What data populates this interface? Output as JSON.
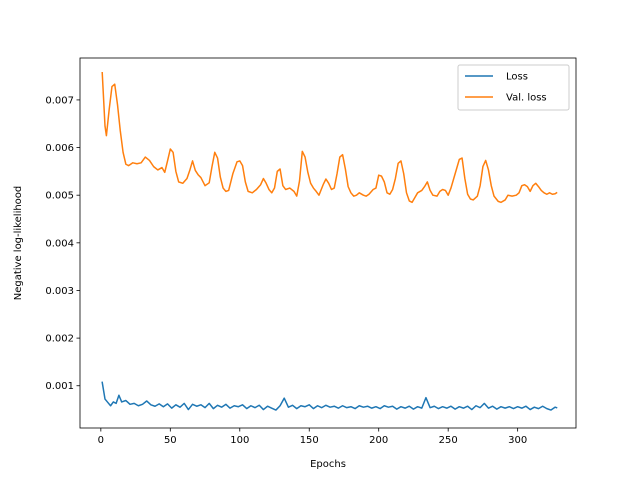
{
  "chart_data": {
    "type": "line",
    "xlabel": "Epochs",
    "ylabel": "Negative log-likelihood",
    "xlim": [
      -15,
      342
    ],
    "ylim": [
      0.000113,
      0.00788
    ],
    "x_ticks": [
      0,
      50,
      100,
      150,
      200,
      250,
      300
    ],
    "y_ticks": [
      0.001,
      0.002,
      0.003,
      0.004,
      0.005,
      0.006,
      0.007
    ],
    "y_tick_labels": [
      "0.001",
      "0.002",
      "0.003",
      "0.004",
      "0.005",
      "0.006",
      "0.007"
    ],
    "grid": false,
    "legend_position": "top-right",
    "series": [
      {
        "name": "Loss",
        "color": "#1f77b4",
        "points": [
          [
            1,
            0.00107
          ],
          [
            3,
            0.00072
          ],
          [
            5,
            0.00065
          ],
          [
            7,
            0.00058
          ],
          [
            9,
            0.00066
          ],
          [
            11,
            0.00063
          ],
          [
            13,
            0.0008
          ],
          [
            15,
            0.00066
          ],
          [
            18,
            0.00069
          ],
          [
            21,
            0.00061
          ],
          [
            24,
            0.00063
          ],
          [
            27,
            0.00058
          ],
          [
            30,
            0.00061
          ],
          [
            33,
            0.00068
          ],
          [
            36,
            0.0006
          ],
          [
            39,
            0.00057
          ],
          [
            42,
            0.00062
          ],
          [
            45,
            0.00056
          ],
          [
            48,
            0.00062
          ],
          [
            51,
            0.00053
          ],
          [
            54,
            0.0006
          ],
          [
            57,
            0.00055
          ],
          [
            60,
            0.00063
          ],
          [
            63,
            0.0005
          ],
          [
            66,
            0.00061
          ],
          [
            69,
            0.00057
          ],
          [
            72,
            0.0006
          ],
          [
            75,
            0.00054
          ],
          [
            78,
            0.00063
          ],
          [
            81,
            0.00052
          ],
          [
            84,
            0.00059
          ],
          [
            87,
            0.00055
          ],
          [
            90,
            0.00061
          ],
          [
            93,
            0.00053
          ],
          [
            96,
            0.00058
          ],
          [
            99,
            0.00056
          ],
          [
            102,
            0.0006
          ],
          [
            105,
            0.00052
          ],
          [
            108,
            0.00058
          ],
          [
            111,
            0.00054
          ],
          [
            114,
            0.00059
          ],
          [
            117,
            0.0005
          ],
          [
            120,
            0.00057
          ],
          [
            123,
            0.00053
          ],
          [
            126,
            0.00049
          ],
          [
            129,
            0.00058
          ],
          [
            132,
            0.00074
          ],
          [
            135,
            0.00055
          ],
          [
            138,
            0.00059
          ],
          [
            141,
            0.00052
          ],
          [
            144,
            0.00058
          ],
          [
            147,
            0.00056
          ],
          [
            150,
            0.0006
          ],
          [
            153,
            0.00052
          ],
          [
            156,
            0.00058
          ],
          [
            159,
            0.00054
          ],
          [
            162,
            0.00059
          ],
          [
            165,
            0.00055
          ],
          [
            168,
            0.00057
          ],
          [
            171,
            0.00053
          ],
          [
            174,
            0.00058
          ],
          [
            177,
            0.00054
          ],
          [
            180,
            0.00056
          ],
          [
            183,
            0.00052
          ],
          [
            186,
            0.00058
          ],
          [
            189,
            0.00055
          ],
          [
            192,
            0.00057
          ],
          [
            195,
            0.00053
          ],
          [
            198,
            0.00056
          ],
          [
            201,
            0.00052
          ],
          [
            204,
            0.00058
          ],
          [
            207,
            0.00055
          ],
          [
            210,
            0.00057
          ],
          [
            213,
            0.00051
          ],
          [
            216,
            0.00056
          ],
          [
            219,
            0.00053
          ],
          [
            222,
            0.00057
          ],
          [
            225,
            0.00051
          ],
          [
            228,
            0.00056
          ],
          [
            231,
            0.00053
          ],
          [
            234,
            0.00075
          ],
          [
            237,
            0.00054
          ],
          [
            240,
            0.00057
          ],
          [
            243,
            0.00052
          ],
          [
            246,
            0.00056
          ],
          [
            249,
            0.00053
          ],
          [
            252,
            0.00057
          ],
          [
            255,
            0.00051
          ],
          [
            258,
            0.00056
          ],
          [
            261,
            0.00053
          ],
          [
            264,
            0.00057
          ],
          [
            267,
            0.0005
          ],
          [
            270,
            0.00058
          ],
          [
            273,
            0.00054
          ],
          [
            276,
            0.00063
          ],
          [
            279,
            0.00053
          ],
          [
            282,
            0.00057
          ],
          [
            285,
            0.00051
          ],
          [
            288,
            0.00056
          ],
          [
            291,
            0.00053
          ],
          [
            294,
            0.00056
          ],
          [
            297,
            0.00052
          ],
          [
            300,
            0.00056
          ],
          [
            303,
            0.00053
          ],
          [
            306,
            0.00057
          ],
          [
            309,
            0.0005
          ],
          [
            312,
            0.00055
          ],
          [
            315,
            0.00052
          ],
          [
            318,
            0.00057
          ],
          [
            321,
            0.00052
          ],
          [
            324,
            0.00049
          ],
          [
            327,
            0.00055
          ],
          [
            328,
            0.00054
          ]
        ]
      },
      {
        "name": "Val. loss",
        "color": "#ff7f0e",
        "points": [
          [
            1,
            0.00757
          ],
          [
            3,
            0.00645
          ],
          [
            4,
            0.00625
          ],
          [
            6,
            0.0068
          ],
          [
            8,
            0.00728
          ],
          [
            10,
            0.00733
          ],
          [
            12,
            0.0069
          ],
          [
            14,
            0.00635
          ],
          [
            16,
            0.0059
          ],
          [
            18,
            0.00565
          ],
          [
            20,
            0.00562
          ],
          [
            23,
            0.00568
          ],
          [
            26,
            0.00566
          ],
          [
            29,
            0.00568
          ],
          [
            32,
            0.0058
          ],
          [
            35,
            0.00573
          ],
          [
            38,
            0.0056
          ],
          [
            41,
            0.00553
          ],
          [
            44,
            0.00558
          ],
          [
            46,
            0.00548
          ],
          [
            48,
            0.00572
          ],
          [
            50,
            0.00597
          ],
          [
            52,
            0.0059
          ],
          [
            54,
            0.0055
          ],
          [
            56,
            0.00528
          ],
          [
            59,
            0.00525
          ],
          [
            62,
            0.00535
          ],
          [
            64,
            0.00552
          ],
          [
            66,
            0.00572
          ],
          [
            68,
            0.00552
          ],
          [
            70,
            0.00543
          ],
          [
            72,
            0.00537
          ],
          [
            75,
            0.0052
          ],
          [
            78,
            0.00526
          ],
          [
            80,
            0.0056
          ],
          [
            82,
            0.0059
          ],
          [
            84,
            0.00578
          ],
          [
            86,
            0.00538
          ],
          [
            88,
            0.00515
          ],
          [
            90,
            0.00508
          ],
          [
            92,
            0.0051
          ],
          [
            95,
            0.00545
          ],
          [
            98,
            0.0057
          ],
          [
            100,
            0.00572
          ],
          [
            102,
            0.00562
          ],
          [
            104,
            0.00528
          ],
          [
            106,
            0.00508
          ],
          [
            109,
            0.00505
          ],
          [
            112,
            0.00512
          ],
          [
            115,
            0.00522
          ],
          [
            117,
            0.00535
          ],
          [
            119,
            0.00525
          ],
          [
            121,
            0.00512
          ],
          [
            123,
            0.00505
          ],
          [
            125,
            0.00515
          ],
          [
            127,
            0.0055
          ],
          [
            129,
            0.00555
          ],
          [
            131,
            0.0052
          ],
          [
            133,
            0.00512
          ],
          [
            136,
            0.00515
          ],
          [
            139,
            0.00508
          ],
          [
            141,
            0.00498
          ],
          [
            143,
            0.0053
          ],
          [
            145,
            0.00592
          ],
          [
            147,
            0.0058
          ],
          [
            149,
            0.00548
          ],
          [
            151,
            0.00525
          ],
          [
            153,
            0.00515
          ],
          [
            155,
            0.00508
          ],
          [
            157,
            0.005
          ],
          [
            160,
            0.00522
          ],
          [
            162,
            0.00534
          ],
          [
            164,
            0.00525
          ],
          [
            166,
            0.00512
          ],
          [
            168,
            0.00515
          ],
          [
            170,
            0.00545
          ],
          [
            172,
            0.0058
          ],
          [
            174,
            0.00585
          ],
          [
            176,
            0.00555
          ],
          [
            178,
            0.00518
          ],
          [
            180,
            0.00505
          ],
          [
            182,
            0.00498
          ],
          [
            184,
            0.005
          ],
          [
            186,
            0.00505
          ],
          [
            189,
            0.005
          ],
          [
            191,
            0.00498
          ],
          [
            193,
            0.00502
          ],
          [
            196,
            0.00512
          ],
          [
            198,
            0.00515
          ],
          [
            200,
            0.00542
          ],
          [
            202,
            0.0054
          ],
          [
            204,
            0.00528
          ],
          [
            206,
            0.00505
          ],
          [
            208,
            0.00502
          ],
          [
            210,
            0.00512
          ],
          [
            212,
            0.00535
          ],
          [
            214,
            0.00567
          ],
          [
            216,
            0.00572
          ],
          [
            218,
            0.00545
          ],
          [
            220,
            0.00505
          ],
          [
            222,
            0.00488
          ],
          [
            224,
            0.00485
          ],
          [
            226,
            0.00495
          ],
          [
            228,
            0.00505
          ],
          [
            231,
            0.0051
          ],
          [
            233,
            0.00518
          ],
          [
            235,
            0.00528
          ],
          [
            237,
            0.0051
          ],
          [
            239,
            0.005
          ],
          [
            242,
            0.00498
          ],
          [
            244,
            0.00508
          ],
          [
            246,
            0.00512
          ],
          [
            248,
            0.0051
          ],
          [
            250,
            0.005
          ],
          [
            252,
            0.00515
          ],
          [
            255,
            0.00545
          ],
          [
            258,
            0.00575
          ],
          [
            260,
            0.00578
          ],
          [
            262,
            0.00535
          ],
          [
            264,
            0.00502
          ],
          [
            266,
            0.00492
          ],
          [
            268,
            0.0049
          ],
          [
            271,
            0.00498
          ],
          [
            273,
            0.0052
          ],
          [
            275,
            0.0056
          ],
          [
            277,
            0.00573
          ],
          [
            279,
            0.00553
          ],
          [
            281,
            0.0052
          ],
          [
            283,
            0.00498
          ],
          [
            286,
            0.00487
          ],
          [
            288,
            0.00485
          ],
          [
            291,
            0.0049
          ],
          [
            293,
            0.005
          ],
          [
            296,
            0.00498
          ],
          [
            299,
            0.005
          ],
          [
            301,
            0.00505
          ],
          [
            303,
            0.0052
          ],
          [
            305,
            0.00522
          ],
          [
            307,
            0.00518
          ],
          [
            309,
            0.00508
          ],
          [
            311,
            0.0052
          ],
          [
            313,
            0.00525
          ],
          [
            315,
            0.00518
          ],
          [
            317,
            0.0051
          ],
          [
            319,
            0.00505
          ],
          [
            321,
            0.00502
          ],
          [
            323,
            0.00505
          ],
          [
            325,
            0.00502
          ],
          [
            327,
            0.00503
          ],
          [
            328,
            0.00505
          ]
        ]
      }
    ]
  }
}
